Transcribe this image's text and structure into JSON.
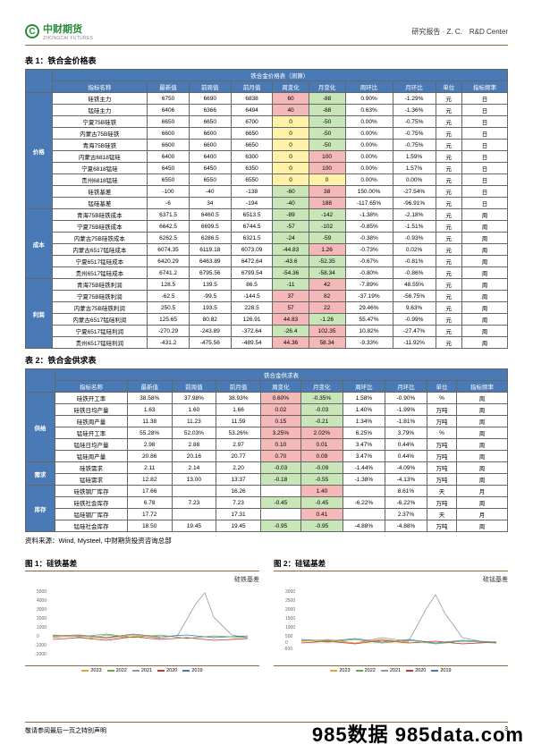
{
  "header": {
    "logo_cn": "中财期货",
    "logo_en": "ZHONGCAI FUTURES",
    "logo_mark": "C",
    "right": "研究报告 · Z. C.　R&D Center"
  },
  "table1": {
    "title": "表 1：铁合金价格表",
    "header_span": "铁合金价格表（测算）",
    "cols": [
      "指标名称",
      "最新值",
      "前周值",
      "前月值",
      "周变化",
      "月变化",
      "周环比",
      "月环比",
      "单位",
      "指标频率"
    ],
    "groups": [
      {
        "name": "价格",
        "rows": [
          [
            "硅铁主力",
            "6750",
            "6690",
            "6838",
            "60",
            "-88",
            "0.90%",
            "-1.29%",
            "元",
            "日"
          ],
          [
            "锰硅主力",
            "6406",
            "6366",
            "6494",
            "40",
            "-88",
            "0.63%",
            "-1.36%",
            "元",
            "日"
          ],
          [
            "宁夏75B硅铁",
            "6650",
            "6650",
            "6700",
            "0",
            "-50",
            "0.00%",
            "-0.75%",
            "元",
            "日"
          ],
          [
            "内蒙古75B硅铁",
            "6600",
            "6600",
            "6650",
            "0",
            "-50",
            "0.00%",
            "-0.75%",
            "元",
            "日"
          ],
          [
            "青海75B硅铁",
            "6600",
            "6600",
            "6650",
            "0",
            "-50",
            "0.00%",
            "-0.75%",
            "元",
            "日"
          ],
          [
            "内蒙古6818锰硅",
            "6400",
            "6400",
            "6300",
            "0",
            "100",
            "0.00%",
            "1.59%",
            "元",
            "日"
          ],
          [
            "宁夏6818锰硅",
            "6450",
            "6450",
            "6350",
            "0",
            "100",
            "0.00%",
            "1.57%",
            "元",
            "日"
          ],
          [
            "贵州6818锰硅",
            "6550",
            "6550",
            "6550",
            "0",
            "0",
            "0.00%",
            "0.00%",
            "元",
            "日"
          ],
          [
            "硅铁基差",
            "-100",
            "-40",
            "-138",
            "-60",
            "38",
            "150.00%",
            "-27.54%",
            "元",
            "日"
          ],
          [
            "锰硅基差",
            "-6",
            "34",
            "-194",
            "-40",
            "188",
            "-117.65%",
            "-96.91%",
            "元",
            "日"
          ]
        ]
      },
      {
        "name": "成本",
        "rows": [
          [
            "青海75B硅铁成本",
            "6371.5",
            "6460.5",
            "6513.5",
            "-89",
            "-142",
            "-1.38%",
            "-2.18%",
            "元",
            "周"
          ],
          [
            "宁夏75B硅铁成本",
            "6642.5",
            "6699.5",
            "6744.5",
            "-57",
            "-102",
            "-0.85%",
            "-1.51%",
            "元",
            "周"
          ],
          [
            "内蒙古75B硅铁成本",
            "6262.5",
            "6286.5",
            "6321.5",
            "-24",
            "-59",
            "-0.38%",
            "-0.93%",
            "元",
            "周"
          ],
          [
            "内蒙古6517锰硅成本",
            "6074.35",
            "6119.18",
            "6073.09",
            "-44.83",
            "1.26",
            "-0.73%",
            "0.02%",
            "元",
            "周"
          ],
          [
            "宁夏6517锰硅成本",
            "6420.29",
            "6463.89",
            "6472.64",
            "-43.6",
            "-52.35",
            "-0.67%",
            "-0.81%",
            "元",
            "周"
          ],
          [
            "贵州6517锰硅成本",
            "6741.2",
            "6795.56",
            "6799.54",
            "-54.36",
            "-58.34",
            "-0.80%",
            "-0.86%",
            "元",
            "周"
          ]
        ]
      },
      {
        "name": "利润",
        "rows": [
          [
            "青海75B硅铁利润",
            "128.5",
            "139.5",
            "86.5",
            "-11",
            "42",
            "-7.89%",
            "48.55%",
            "元",
            "周"
          ],
          [
            "宁夏75B硅铁利润",
            "-62.5",
            "-99.5",
            "-144.5",
            "37",
            "82",
            "-37.19%",
            "-56.75%",
            "元",
            "周"
          ],
          [
            "内蒙古75B硅铁利润",
            "250.5",
            "193.5",
            "228.5",
            "57",
            "22",
            "29.46%",
            "9.63%",
            "元",
            "周"
          ],
          [
            "内蒙古6517锰硅利润",
            "125.65",
            "80.82",
            "126.91",
            "44.83",
            "-1.26",
            "55.47%",
            "-0.99%",
            "元",
            "周"
          ],
          [
            "宁夏6517锰硅利润",
            "-270.29",
            "-243.89",
            "-372.64",
            "-26.4",
            "102.35",
            "10.82%",
            "-27.47%",
            "元",
            "周"
          ],
          [
            "贵州6517锰硅利润",
            "-431.2",
            "-475.56",
            "-489.54",
            "44.36",
            "58.34",
            "-9.33%",
            "-11.92%",
            "元",
            "周"
          ]
        ]
      }
    ]
  },
  "table2": {
    "title": "表 2：铁合金供求表",
    "header_span": "铁合金供求表",
    "cols": [
      "指标名称",
      "最新值",
      "前周值",
      "前月值",
      "周变化",
      "月变化",
      "周环比",
      "月环比",
      "单位",
      "指标频率"
    ],
    "groups": [
      {
        "name": "供给",
        "rows": [
          [
            "硅铁开工率",
            "38.58%",
            "37.98%",
            "38.93%",
            "0.60%",
            "-0.35%",
            "1.58%",
            "-0.90%",
            "%",
            "周"
          ],
          [
            "硅铁日均产量",
            "1.63",
            "1.60",
            "1.66",
            "0.02",
            "-0.03",
            "1.40%",
            "-1.99%",
            "万吨",
            "周"
          ],
          [
            "硅铁周产量",
            "11.38",
            "11.23",
            "11.59",
            "0.15",
            "-0.21",
            "1.34%",
            "-1.81%",
            "万吨",
            "周"
          ],
          [
            "锰硅开工率",
            "55.28%",
            "52.03%",
            "53.26%",
            "3.25%",
            "2.02%",
            "6.25%",
            "3.79%",
            "%",
            "周"
          ],
          [
            "锰硅日均产量",
            "2.98",
            "2.88",
            "2.97",
            "0.10",
            "0.01",
            "3.47%",
            "0.44%",
            "万吨",
            "周"
          ],
          [
            "锰硅周产量",
            "20.86",
            "20.16",
            "20.77",
            "0.70",
            "0.09",
            "3.47%",
            "0.44%",
            "万吨",
            "周"
          ]
        ]
      },
      {
        "name": "需求",
        "rows": [
          [
            "硅铁需求",
            "2.11",
            "2.14",
            "2.20",
            "-0.03",
            "-0.09",
            "-1.44%",
            "-4.09%",
            "万吨",
            "周"
          ],
          [
            "锰硅需求",
            "12.82",
            "13.00",
            "13.37",
            "-0.18",
            "-0.55",
            "-1.38%",
            "-4.13%",
            "万吨",
            "周"
          ]
        ]
      },
      {
        "name": "库存",
        "rows": [
          [
            "硅铁钢厂库存",
            "17.66",
            "",
            "16.26",
            "",
            "1.40",
            "",
            "8.61%",
            "天",
            "月"
          ],
          [
            "硅铁社会库存",
            "6.78",
            "7.23",
            "7.23",
            "-0.45",
            "-0.45",
            "-6.22%",
            "-6.22%",
            "万吨",
            "周"
          ],
          [
            "锰硅钢厂库存",
            "17.72",
            "",
            "17.31",
            "",
            "0.41",
            "",
            "2.37%",
            "天",
            "月"
          ],
          [
            "锰硅社会库存",
            "18.50",
            "19.45",
            "19.45",
            "-0.95",
            "-0.95",
            "-4.88%",
            "-4.88%",
            "万吨",
            "周"
          ]
        ]
      }
    ]
  },
  "source": "资料来源：Wind, Mysteel, 中财期货投资咨询总部",
  "chart1": {
    "title": "图 1：硅铁基差",
    "sub": "硅铁基差",
    "ymin": -2000,
    "ymax": 5000,
    "legend": [
      "2023",
      "2022",
      "2021",
      "2020",
      "2019"
    ],
    "colors": [
      "#e8a23a",
      "#6aa84f",
      "#999999",
      "#cc3333",
      "#4a7ab5"
    ]
  },
  "chart2": {
    "title": "图 2：硅锰基差",
    "sub": "硅锰基差",
    "ymin": -1500,
    "ymax": 3000,
    "legend": [
      "2023",
      "2022",
      "2021",
      "2020",
      "2019"
    ],
    "colors": [
      "#e8a23a",
      "#6aa84f",
      "#999999",
      "#cc3333",
      "#4a7ab5"
    ]
  },
  "footer": {
    "left": "敬请参阅最后一页之特别声明",
    "page": "3"
  },
  "watermark": "985数据 985data.com",
  "hl_rules": {
    "table1": {
      "col4": {
        "pos": "hl-r",
        "neg": "hl-g",
        "zero": "hl-y"
      },
      "col5": {
        "pos": "hl-r",
        "neg": "hl-g",
        "zero": "hl-y"
      }
    },
    "table2": {
      "col4": {
        "pos": "hl-r",
        "neg": "hl-g",
        "zero": "hl-y"
      },
      "col5": {
        "pos": "hl-r",
        "neg": "hl-g",
        "zero": "hl-y"
      }
    }
  }
}
